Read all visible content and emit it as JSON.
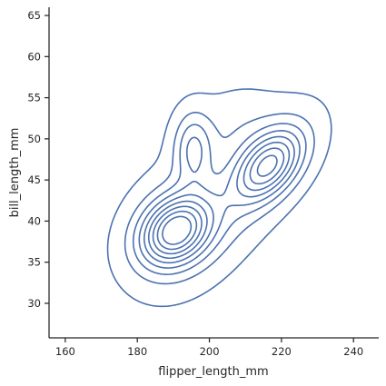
{
  "chart_data": {
    "type": "kde-contour",
    "title": "",
    "xlabel": "flipper_length_mm",
    "ylabel": "bill_length_mm",
    "xlim": [
      155.5,
      247
    ],
    "ylim": [
      25.8,
      66
    ],
    "xticks": [
      160,
      180,
      200,
      220,
      240
    ],
    "yticks": [
      30,
      35,
      40,
      45,
      50,
      55,
      60,
      65
    ],
    "grid": false,
    "legend": "none",
    "line_color": "#4c72b0",
    "contour_levels": 9,
    "density_peaks": [
      {
        "x": 190.5,
        "y": 38.8
      },
      {
        "x": 216.5,
        "y": 46.8
      },
      {
        "x": 195.5,
        "y": 48.8
      }
    ]
  }
}
